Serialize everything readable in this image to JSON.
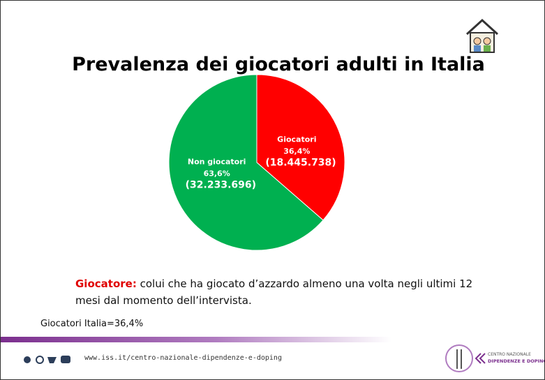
{
  "chart_data": {
    "type": "pie",
    "title": "Prevalenza dei giocatori adulti in Italia",
    "categories": [
      "Giocatori",
      "Non giocatori"
    ],
    "values": [
      36.4,
      63.6
    ],
    "value_labels": [
      "36,4%",
      "63,6%"
    ],
    "counts": [
      18445738,
      32233696
    ],
    "count_labels": [
      "(18.445.738)",
      "(32.233.696)"
    ],
    "colors": [
      "#ff0000",
      "#00b050"
    ]
  },
  "definition": {
    "term": "Giocatore:",
    "text": "colui che ha giocato d’azzardo almeno una volta negli ultimi 12 mesi dal momento dell’intervista."
  },
  "summary": "Giocatori Italia=36,4%",
  "footer": {
    "url": "www.iss.it/centro-nazionale-dipendenze-e-doping",
    "logo_line1": "CENTRO NAZIONALE",
    "logo_line2": "DIPENDENZE E DOPING"
  }
}
